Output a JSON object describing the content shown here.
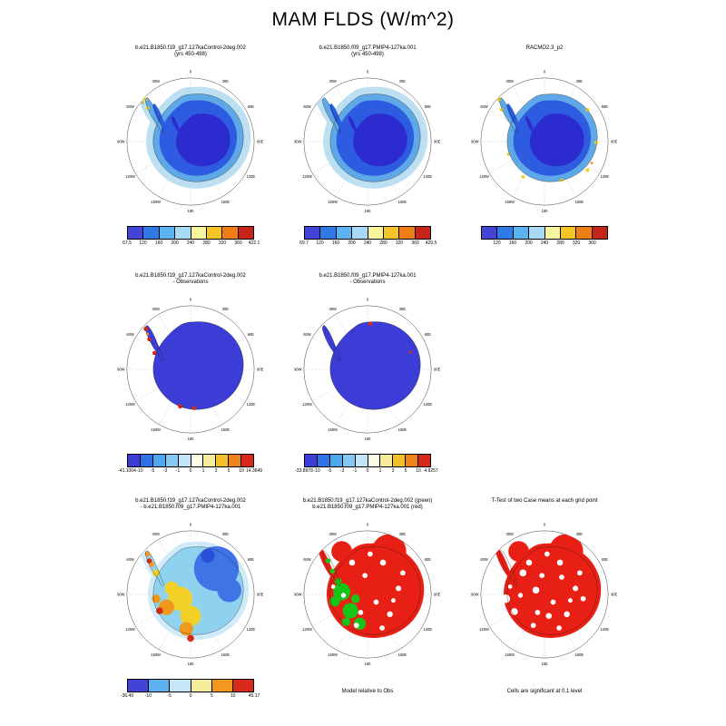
{
  "title": "MAM FLDS (W/m^2)",
  "lon_labels": [
    "0",
    "30E",
    "60E",
    "90E",
    "120E",
    "150E",
    "180",
    "150W",
    "120W",
    "90W",
    "60W",
    "30W"
  ],
  "map_colors": {
    "deep_blue": "#2b2bd0",
    "mid_blue": "#2d5ce0",
    "coast_blue": "#5fa8e8",
    "halo_blue": "#bcdff2",
    "indigo": "#3c3cd6",
    "yellow": "#f2d028",
    "orange": "#ef9a1e",
    "red": "#da2a16",
    "green": "#17c517",
    "light_cyan": "#8fd2f0",
    "patch_blue": "#3f74e6",
    "pale_halo": "#cfeaf8",
    "sig_red": "#e81f14"
  },
  "palettes": {
    "abs8": [
      "#4444d8",
      "#2d7ae8",
      "#5ab2ef",
      "#a9daf5",
      "#f6f49c",
      "#f5c428",
      "#ee7d18",
      "#c62418"
    ],
    "diff10": [
      "#3c3cd6",
      "#2f72e8",
      "#4fa8ee",
      "#86c8f2",
      "#c2e4f8",
      "#fbfbe8",
      "#f6ee9a",
      "#f4c02a",
      "#ee821c",
      "#d8281a"
    ],
    "diff6": [
      "#4343d8",
      "#5fb0ee",
      "#c4e6f8",
      "#f6ee9c",
      "#f0991e",
      "#d8291a"
    ]
  },
  "panels": [
    {
      "id": "ctrl-abs",
      "row": 0,
      "col": 0,
      "map_type": "abs_halo_yellow",
      "title_lines": [
        "b.e21.B1850.f19_g17.127kaControl-2deg.002",
        "(yrs 450-498)"
      ],
      "colorbar": {
        "palette": "abs8",
        "labels": [
          "67.5",
          "120",
          "160",
          "200",
          "240",
          "280",
          "320",
          "360",
          "422.1"
        ]
      }
    },
    {
      "id": "pmip-abs",
      "row": 0,
      "col": 1,
      "map_type": "abs_halo",
      "title_lines": [
        "b.e21.B1850.f09_g17.PMIP4-127ka.001",
        "(yrs 450-498)"
      ],
      "colorbar": {
        "palette": "abs8",
        "labels": [
          "69.7",
          "120",
          "160",
          "200",
          "240",
          "280",
          "320",
          "360",
          "429.5"
        ]
      }
    },
    {
      "id": "racmo",
      "row": 0,
      "col": 2,
      "map_type": "abs_yellow",
      "title_lines": [
        "RACMO2.3_p2"
      ],
      "colorbar": {
        "palette": "abs8",
        "labels": [
          "120",
          "160",
          "200",
          "240",
          "280",
          "320",
          "360"
        ]
      }
    },
    {
      "id": "ctrl-minus-obs",
      "row": 1,
      "col": 0,
      "map_type": "diff_obs_a",
      "title_lines": [
        "b.e21.B1850.f19_g17.127kaControl-2deg.002",
        "- Observations"
      ],
      "colorbar": {
        "palette": "diff10",
        "labels": [
          "-41.1004",
          "-10",
          "-5",
          "-3",
          "-1",
          "0",
          "1",
          "3",
          "5",
          "10",
          "14.3649"
        ]
      }
    },
    {
      "id": "pmip-minus-obs",
      "row": 1,
      "col": 1,
      "map_type": "diff_obs_b",
      "title_lines": [
        "b.e21.B1850.f09_g17.PMIP4-127ka.001",
        "- Observations"
      ],
      "colorbar": {
        "palette": "diff10",
        "labels": [
          "-33.8978",
          "-10",
          "-5",
          "-3",
          "-1",
          "0",
          "1",
          "3",
          "5",
          "10",
          "4.9257"
        ]
      }
    },
    {
      "id": "ctrl-minus-pmip",
      "row": 2,
      "col": 0,
      "map_type": "diff_models",
      "title_lines": [
        "b.e21.B1850.f19_g17.127kaControl-2deg.002",
        "- b.e21.B1850.f09_g17.PMIP4-127ka.001"
      ],
      "colorbar": {
        "palette": "diff6",
        "labels": [
          "-36.49",
          "-10",
          "-5",
          "0",
          "5",
          "10",
          "45.17"
        ]
      }
    },
    {
      "id": "model-rel-obs",
      "row": 2,
      "col": 1,
      "map_type": "green_red",
      "title_lines": [
        "b.e21.B1850.f19_g17.127kaControl-2deg.002 (green)",
        "b.e21.B1850.f09_g17.PMIP4-127ka.001 (red)"
      ],
      "caption": "Model relative to Obs"
    },
    {
      "id": "ttest",
      "row": 2,
      "col": 2,
      "map_type": "ttest",
      "title_lines": [
        "T-Test of two Case means at each grid point"
      ],
      "caption": "Cells are significant at 0.1 level"
    }
  ],
  "chart_data": [
    {
      "type": "heatmap",
      "title": "b.e21.B1850.f19_g17.127kaControl-2deg.002 (yrs 450-498)",
      "units": "W/m^2",
      "projection": "south polar stereographic",
      "levels": [
        120,
        160,
        200,
        240,
        280,
        320,
        360
      ],
      "min": 67.5,
      "max": 422.1,
      "description": "Downwelling longwave flux: Antarctic plateau ~120-160, coastal band ~160-240, sea-ice halo ~200-240, small yellow patches (~240-280) on Antarctic Peninsula"
    },
    {
      "type": "heatmap",
      "title": "b.e21.B1850.f09_g17.PMIP4-127ka.001 (yrs 450-498)",
      "units": "W/m^2",
      "projection": "south polar stereographic",
      "levels": [
        120,
        160,
        200,
        240,
        280,
        320,
        360
      ],
      "min": 69.7,
      "max": 429.5,
      "description": "Same pattern as control: deep-blue interior, lighter blue coast and surrounding sea ice"
    },
    {
      "type": "heatmap",
      "title": "RACMO2.3_p2",
      "units": "W/m^2",
      "projection": "south polar stereographic",
      "levels": [
        120,
        160,
        200,
        240,
        280,
        320,
        360
      ],
      "description": "Observational product: dark blue interior, light blue coast, yellow/orange spots (~240-320) at coastal margins; ocean masked white"
    },
    {
      "type": "heatmap",
      "title": "b.e21.B1850.f19_g17.127kaControl-2deg.002 - Observations",
      "units": "W/m^2",
      "projection": "south polar stereographic",
      "min": -41.1004,
      "max": 14.3649,
      "description": "Model minus observations: mostly strong negative (indigo) over continent with small red positive spots on peninsula and coast"
    },
    {
      "type": "heatmap",
      "title": "b.e21.B1850.f09_g17.PMIP4-127ka.001 - Observations",
      "units": "W/m^2",
      "projection": "south polar stereographic",
      "min": -33.8978,
      "max": 4.9257,
      "description": "Model minus observations: uniformly negative (indigo) with a tiny red spot near 0E coast"
    },
    {
      "type": "heatmap",
      "title": "b.e21.B1850.f19_g17.127kaControl-2deg.002 - b.e21.B1850.f09_g17.PMIP4-127ka.001",
      "units": "W/m^2",
      "projection": "south polar stereographic",
      "levels": [
        -10,
        -5,
        0,
        5,
        10
      ],
      "min": -36.49,
      "max": 45.17,
      "description": "Case difference: light blue/cyan over East Antarctica, blue patch near 30-60E, yellow-orange-red patches over West Antarctica and Ross sector"
    },
    {
      "type": "heatmap",
      "title": "b.e21.B1850.f19_g17.127kaControl-2deg.002 (green) b.e21.B1850.f09_g17.PMIP4-127ka.001 (red)",
      "caption": "Model relative to Obs",
      "description": "Categorical map: red cells where PMIP4 case closer to obs, green cells (West Antarctica) where control closer, white where neither"
    },
    {
      "type": "heatmap",
      "title": "T-Test of two Case means at each grid point",
      "caption": "Cells are significant at 0.1 level",
      "description": "Red cells mark grid points where the two case means differ significantly at the 0.1 level; white cells not significant"
    }
  ]
}
